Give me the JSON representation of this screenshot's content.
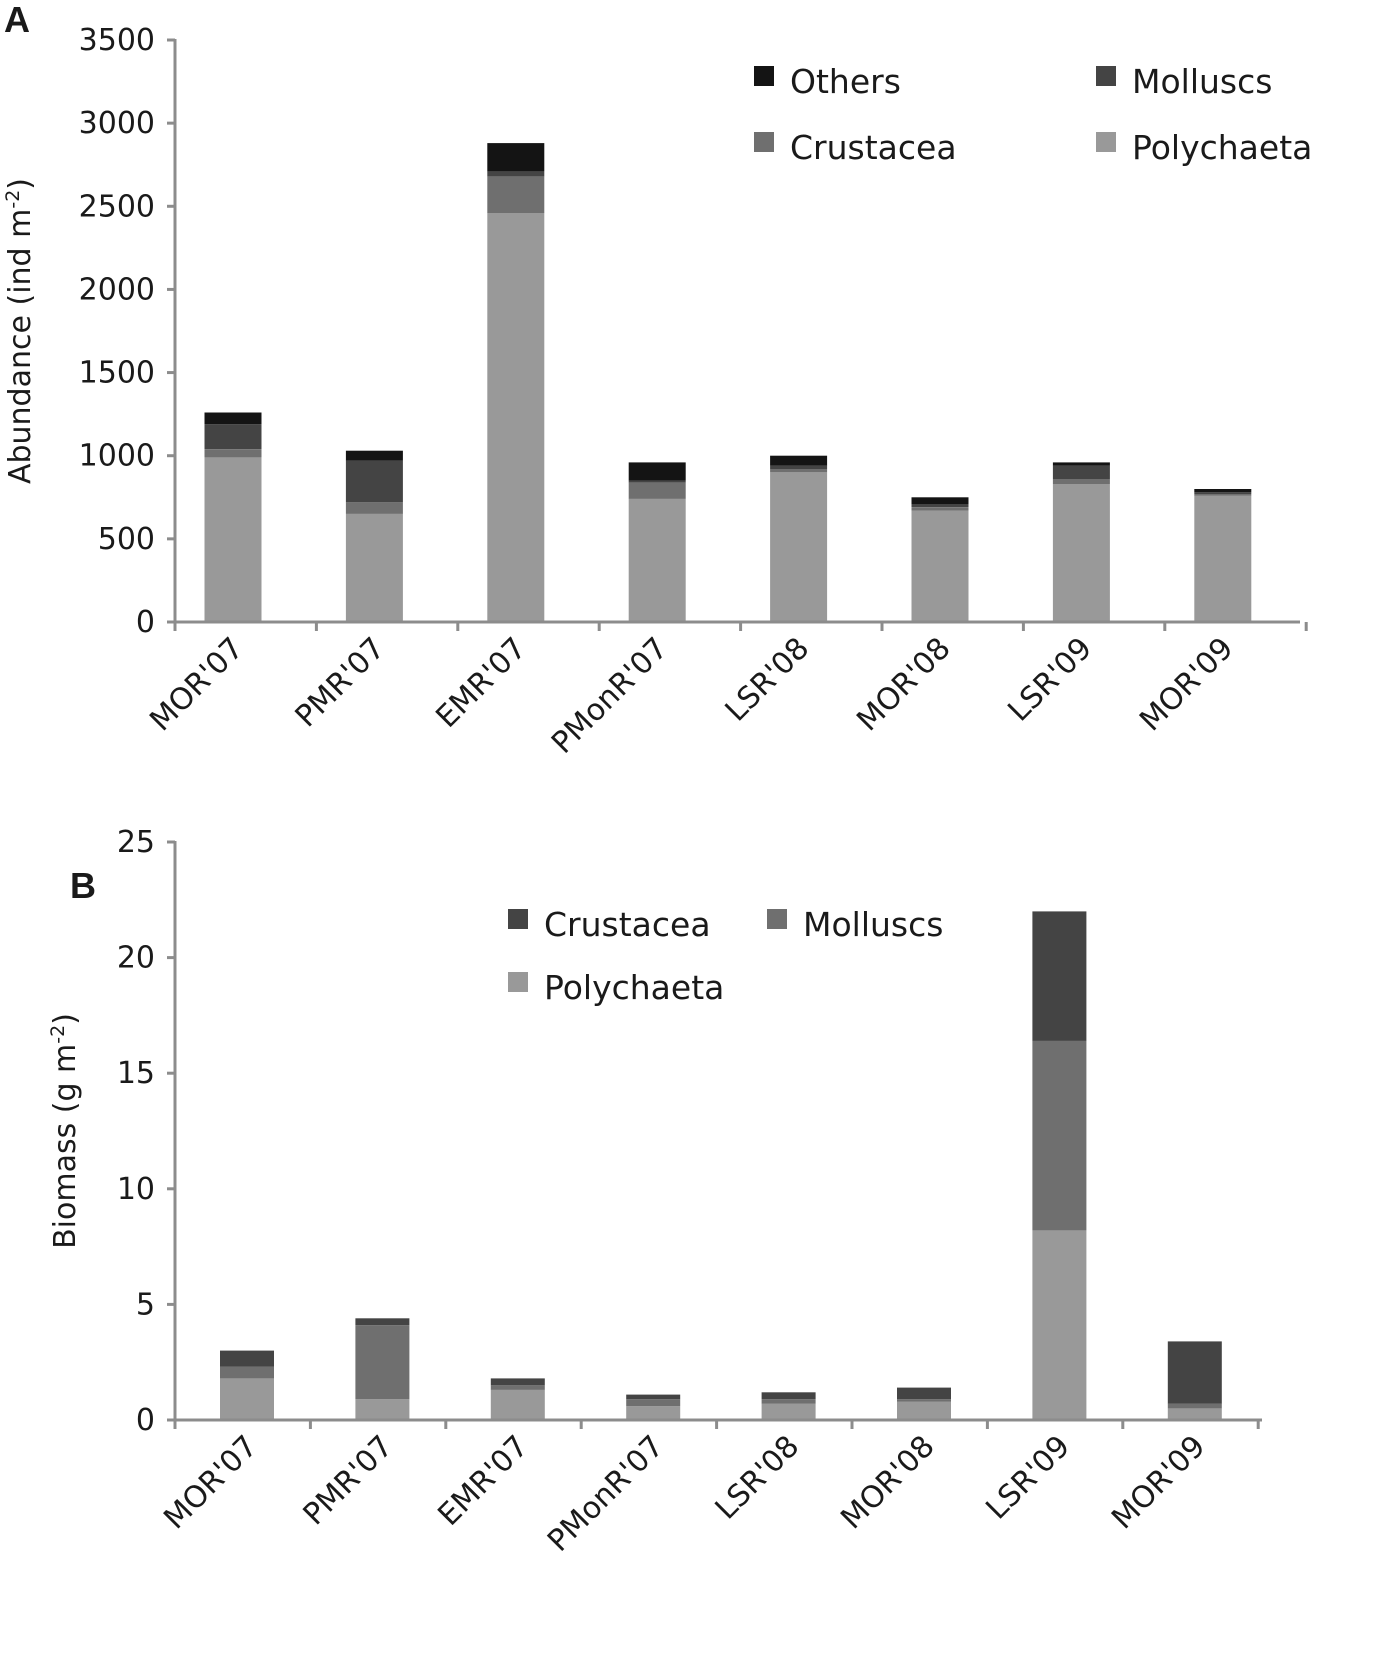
{
  "chart_data": [
    {
      "panel": "A",
      "type": "bar",
      "stacked": true,
      "ylabel": "Abundance (ind m",
      "ylabel_sup": "-2",
      "ylabel_end": ")",
      "ylim": [
        0,
        3500
      ],
      "yticks": [
        0,
        500,
        1000,
        1500,
        2000,
        2500,
        3000,
        3500
      ],
      "grid": false,
      "categories": [
        "MOR'07",
        "PMR'07",
        "EMR'07",
        "PMonR'07",
        "LSR'08",
        "MOR'08",
        "LSR'09",
        "MOR'09"
      ],
      "series": [
        {
          "name": "Polychaeta",
          "color": "#999999",
          "values": [
            990,
            650,
            2460,
            740,
            900,
            670,
            830,
            760
          ]
        },
        {
          "name": "Crustacea",
          "color": "#6f6f6f",
          "values": [
            50,
            70,
            220,
            100,
            20,
            20,
            30,
            10
          ]
        },
        {
          "name": "Molluscs",
          "color": "#444444",
          "values": [
            150,
            250,
            30,
            10,
            20,
            20,
            80,
            10
          ]
        },
        {
          "name": "Others",
          "color": "#141414",
          "values": [
            70,
            60,
            170,
            110,
            60,
            40,
            20,
            20
          ]
        }
      ],
      "legend": [
        {
          "name": "Others",
          "color": "#141414"
        },
        {
          "name": "Molluscs",
          "color": "#444444"
        },
        {
          "name": "Crustacea",
          "color": "#6f6f6f"
        },
        {
          "name": "Polychaeta",
          "color": "#999999"
        }
      ],
      "legend_position": "top-right"
    },
    {
      "panel": "B",
      "type": "bar",
      "stacked": true,
      "ylabel": "Biomass (g m",
      "ylabel_sup": "-2",
      "ylabel_end": ")",
      "ylim": [
        0,
        25
      ],
      "yticks": [
        0,
        5,
        10,
        15,
        20,
        25
      ],
      "grid": false,
      "categories": [
        "MOR'07",
        "PMR'07",
        "EMR'07",
        "PMonR'07",
        "LSR'08",
        "MOR'08",
        "LSR'09",
        "MOR'09"
      ],
      "series": [
        {
          "name": "Polychaeta",
          "color": "#999999",
          "values": [
            1.8,
            0.9,
            1.3,
            0.6,
            0.7,
            0.8,
            8.2,
            0.5
          ]
        },
        {
          "name": "Molluscs",
          "color": "#6f6f6f",
          "values": [
            0.5,
            3.2,
            0.2,
            0.3,
            0.2,
            0.1,
            8.2,
            0.2
          ]
        },
        {
          "name": "Crustacea",
          "color": "#444444",
          "values": [
            0.7,
            0.3,
            0.3,
            0.2,
            0.3,
            0.5,
            5.6,
            2.7
          ]
        }
      ],
      "legend": [
        {
          "name": "Crustacea",
          "color": "#444444"
        },
        {
          "name": "Molluscs",
          "color": "#6f6f6f"
        },
        {
          "name": "Polychaeta",
          "color": "#999999"
        }
      ],
      "legend_position": "top-center"
    }
  ]
}
